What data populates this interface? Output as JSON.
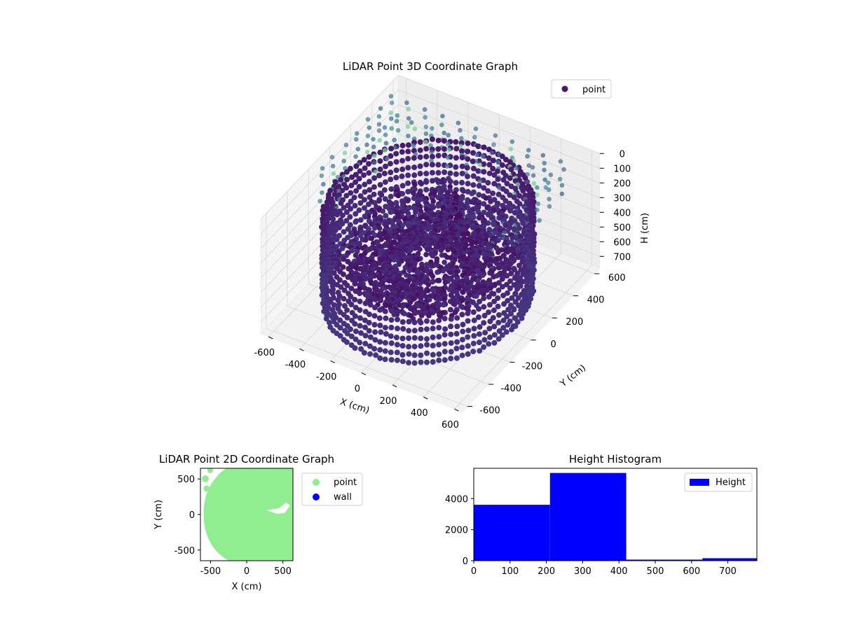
{
  "chart_data": [
    {
      "type": "scatter",
      "projection": "3d",
      "title": "LiDAR Point 3D Coordinate Graph",
      "xlabel": "X (cm)",
      "ylabel": "Y (cm)",
      "zlabel": "H (cm)",
      "x_ticks": [
        -600,
        -400,
        -200,
        0,
        200,
        400,
        600
      ],
      "y_ticks": [
        -600,
        -400,
        -200,
        0,
        200,
        400,
        600
      ],
      "z_ticks": [
        0,
        100,
        200,
        300,
        400,
        500,
        600,
        700
      ],
      "xlim": [
        -650,
        650
      ],
      "ylim": [
        -650,
        650
      ],
      "zlim": [
        780,
        0
      ],
      "z_inverted": true,
      "colormap": "viridis",
      "grid": true,
      "legend": {
        "placement": "top-right",
        "entries": [
          {
            "label": "point",
            "color": "#46186e"
          }
        ]
      },
      "series": [
        {
          "name": "point",
          "structure": {
            "ring_wall": {
              "radius": 560,
              "h_range": [
                150,
                700
              ]
            },
            "interior_layers": [
              {
                "radius_range": [
                  60,
                  440
                ],
                "h": 330
              },
              {
                "radius_range": [
                  100,
                  470
                ],
                "h": 440
              },
              {
                "radius_range": [
                  180,
                  400
                ],
                "h": 560
              }
            ],
            "sparse_grid_top": {
              "h_range": [
                0,
                260
              ]
            }
          }
        }
      ]
    },
    {
      "type": "scatter",
      "title": "LiDAR Point 2D Coordinate Graph",
      "xlabel": "X (cm)",
      "ylabel": "Y (cm)",
      "x_ticks": [
        -500,
        0,
        500
      ],
      "y_ticks": [
        -500,
        0,
        500
      ],
      "xlim": [
        -640,
        640
      ],
      "ylim": [
        -650,
        650
      ],
      "legend": {
        "placement": "right",
        "entries": [
          {
            "label": "point",
            "color": "#90ee90"
          },
          {
            "label": "wall",
            "color": "#0000ff"
          }
        ]
      },
      "series": [
        {
          "name": "point",
          "color": "#90ee90",
          "coverage": "dense disc of radius ~560 offset right, filling to the right edge"
        },
        {
          "name": "wall",
          "color": "#0000ff",
          "values": []
        }
      ]
    },
    {
      "type": "bar",
      "title": "Height Histogram",
      "xlabel": "",
      "ylabel": "",
      "bins": [
        {
          "start": 0,
          "end": 210,
          "count": 3600
        },
        {
          "start": 210,
          "end": 420,
          "count": 5650
        },
        {
          "start": 420,
          "end": 630,
          "count": 70
        },
        {
          "start": 630,
          "end": 780,
          "count": 160
        }
      ],
      "x_ticks": [
        0,
        100,
        200,
        300,
        400,
        500,
        600,
        700
      ],
      "y_ticks": [
        0,
        2000,
        4000
      ],
      "xlim": [
        0,
        780
      ],
      "ylim": [
        0,
        5950
      ],
      "color": "#0000ff",
      "legend": {
        "placement": "top-right",
        "entries": [
          {
            "label": "Height",
            "color": "#0000ff"
          }
        ]
      }
    }
  ]
}
